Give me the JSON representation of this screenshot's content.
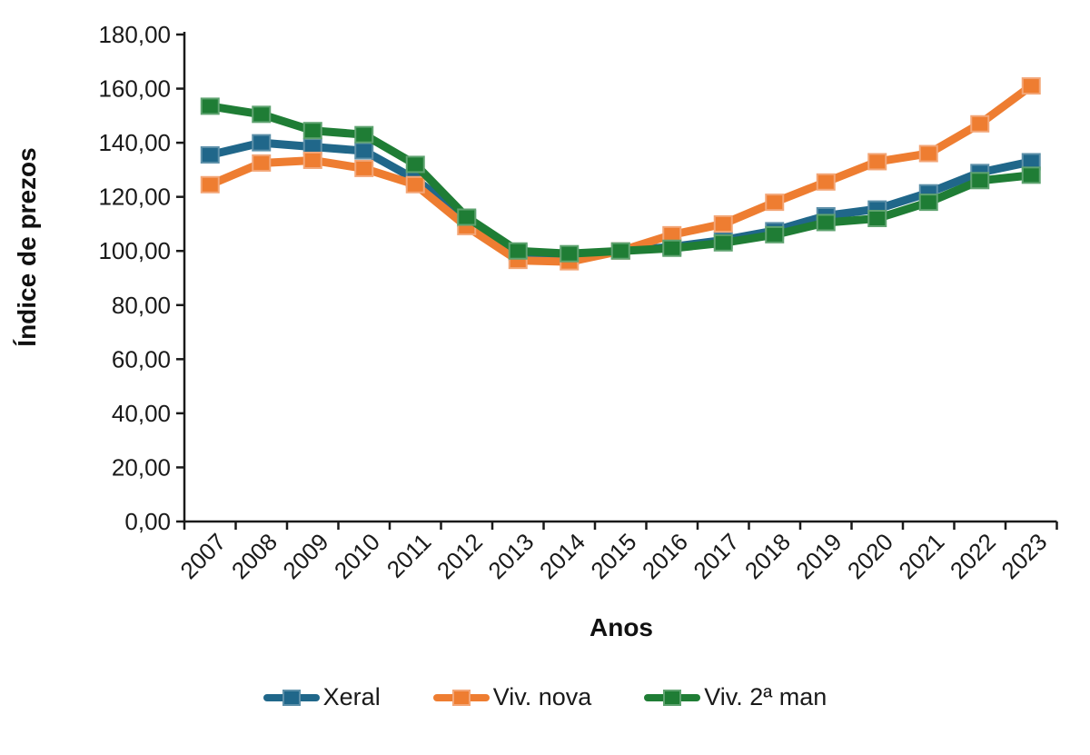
{
  "colors": {
    "background": "#ffffff",
    "axis": "#1a1a1a",
    "text": "#1a1a1a"
  },
  "chart_data": {
    "type": "line",
    "title": "",
    "xlabel": "Anos",
    "ylabel": "Índice de prezos",
    "x": [
      "2007",
      "2008",
      "2009",
      "2010",
      "2011",
      "2012",
      "2013",
      "2014",
      "2015",
      "2016",
      "2017",
      "2018",
      "2019",
      "2020",
      "2021",
      "2022",
      "2023"
    ],
    "series": [
      {
        "id": "xeral",
        "name": "Xeral",
        "color": "#20678a",
        "marker_border": "#5d90a9",
        "values": [
          135.5,
          140.0,
          138.5,
          137.0,
          126.5,
          112.0,
          99.5,
          98.0,
          100.0,
          101.5,
          104.0,
          107.5,
          113.0,
          115.5,
          121.5,
          129.0,
          133.0
        ]
      },
      {
        "id": "viv-nova",
        "name": "Viv. nova",
        "color": "#ee7d31",
        "marker_border": "#f3a677",
        "values": [
          124.5,
          132.5,
          133.5,
          130.5,
          124.5,
          109.0,
          96.5,
          96.0,
          100.0,
          106.0,
          110.0,
          118.0,
          125.5,
          133.0,
          136.0,
          147.0,
          161.0
        ]
      },
      {
        "id": "viv-2a-man",
        "name": "Viv. 2ª man",
        "color": "#1f7d35",
        "marker_border": "#5fa370",
        "values": [
          153.5,
          150.5,
          144.5,
          143.0,
          132.0,
          112.5,
          100.0,
          99.0,
          100.0,
          101.0,
          103.0,
          106.0,
          110.5,
          112.0,
          118.0,
          126.0,
          128.0
        ]
      }
    ],
    "ylim": [
      0,
      180
    ],
    "ytick_step": 20,
    "ytick_labels": [
      "0,00",
      "20,00",
      "40,00",
      "60,00",
      "80,00",
      "100,00",
      "120,00",
      "140,00",
      "160,00",
      "180,00"
    ],
    "grid": false,
    "legend_position": "bottom"
  }
}
